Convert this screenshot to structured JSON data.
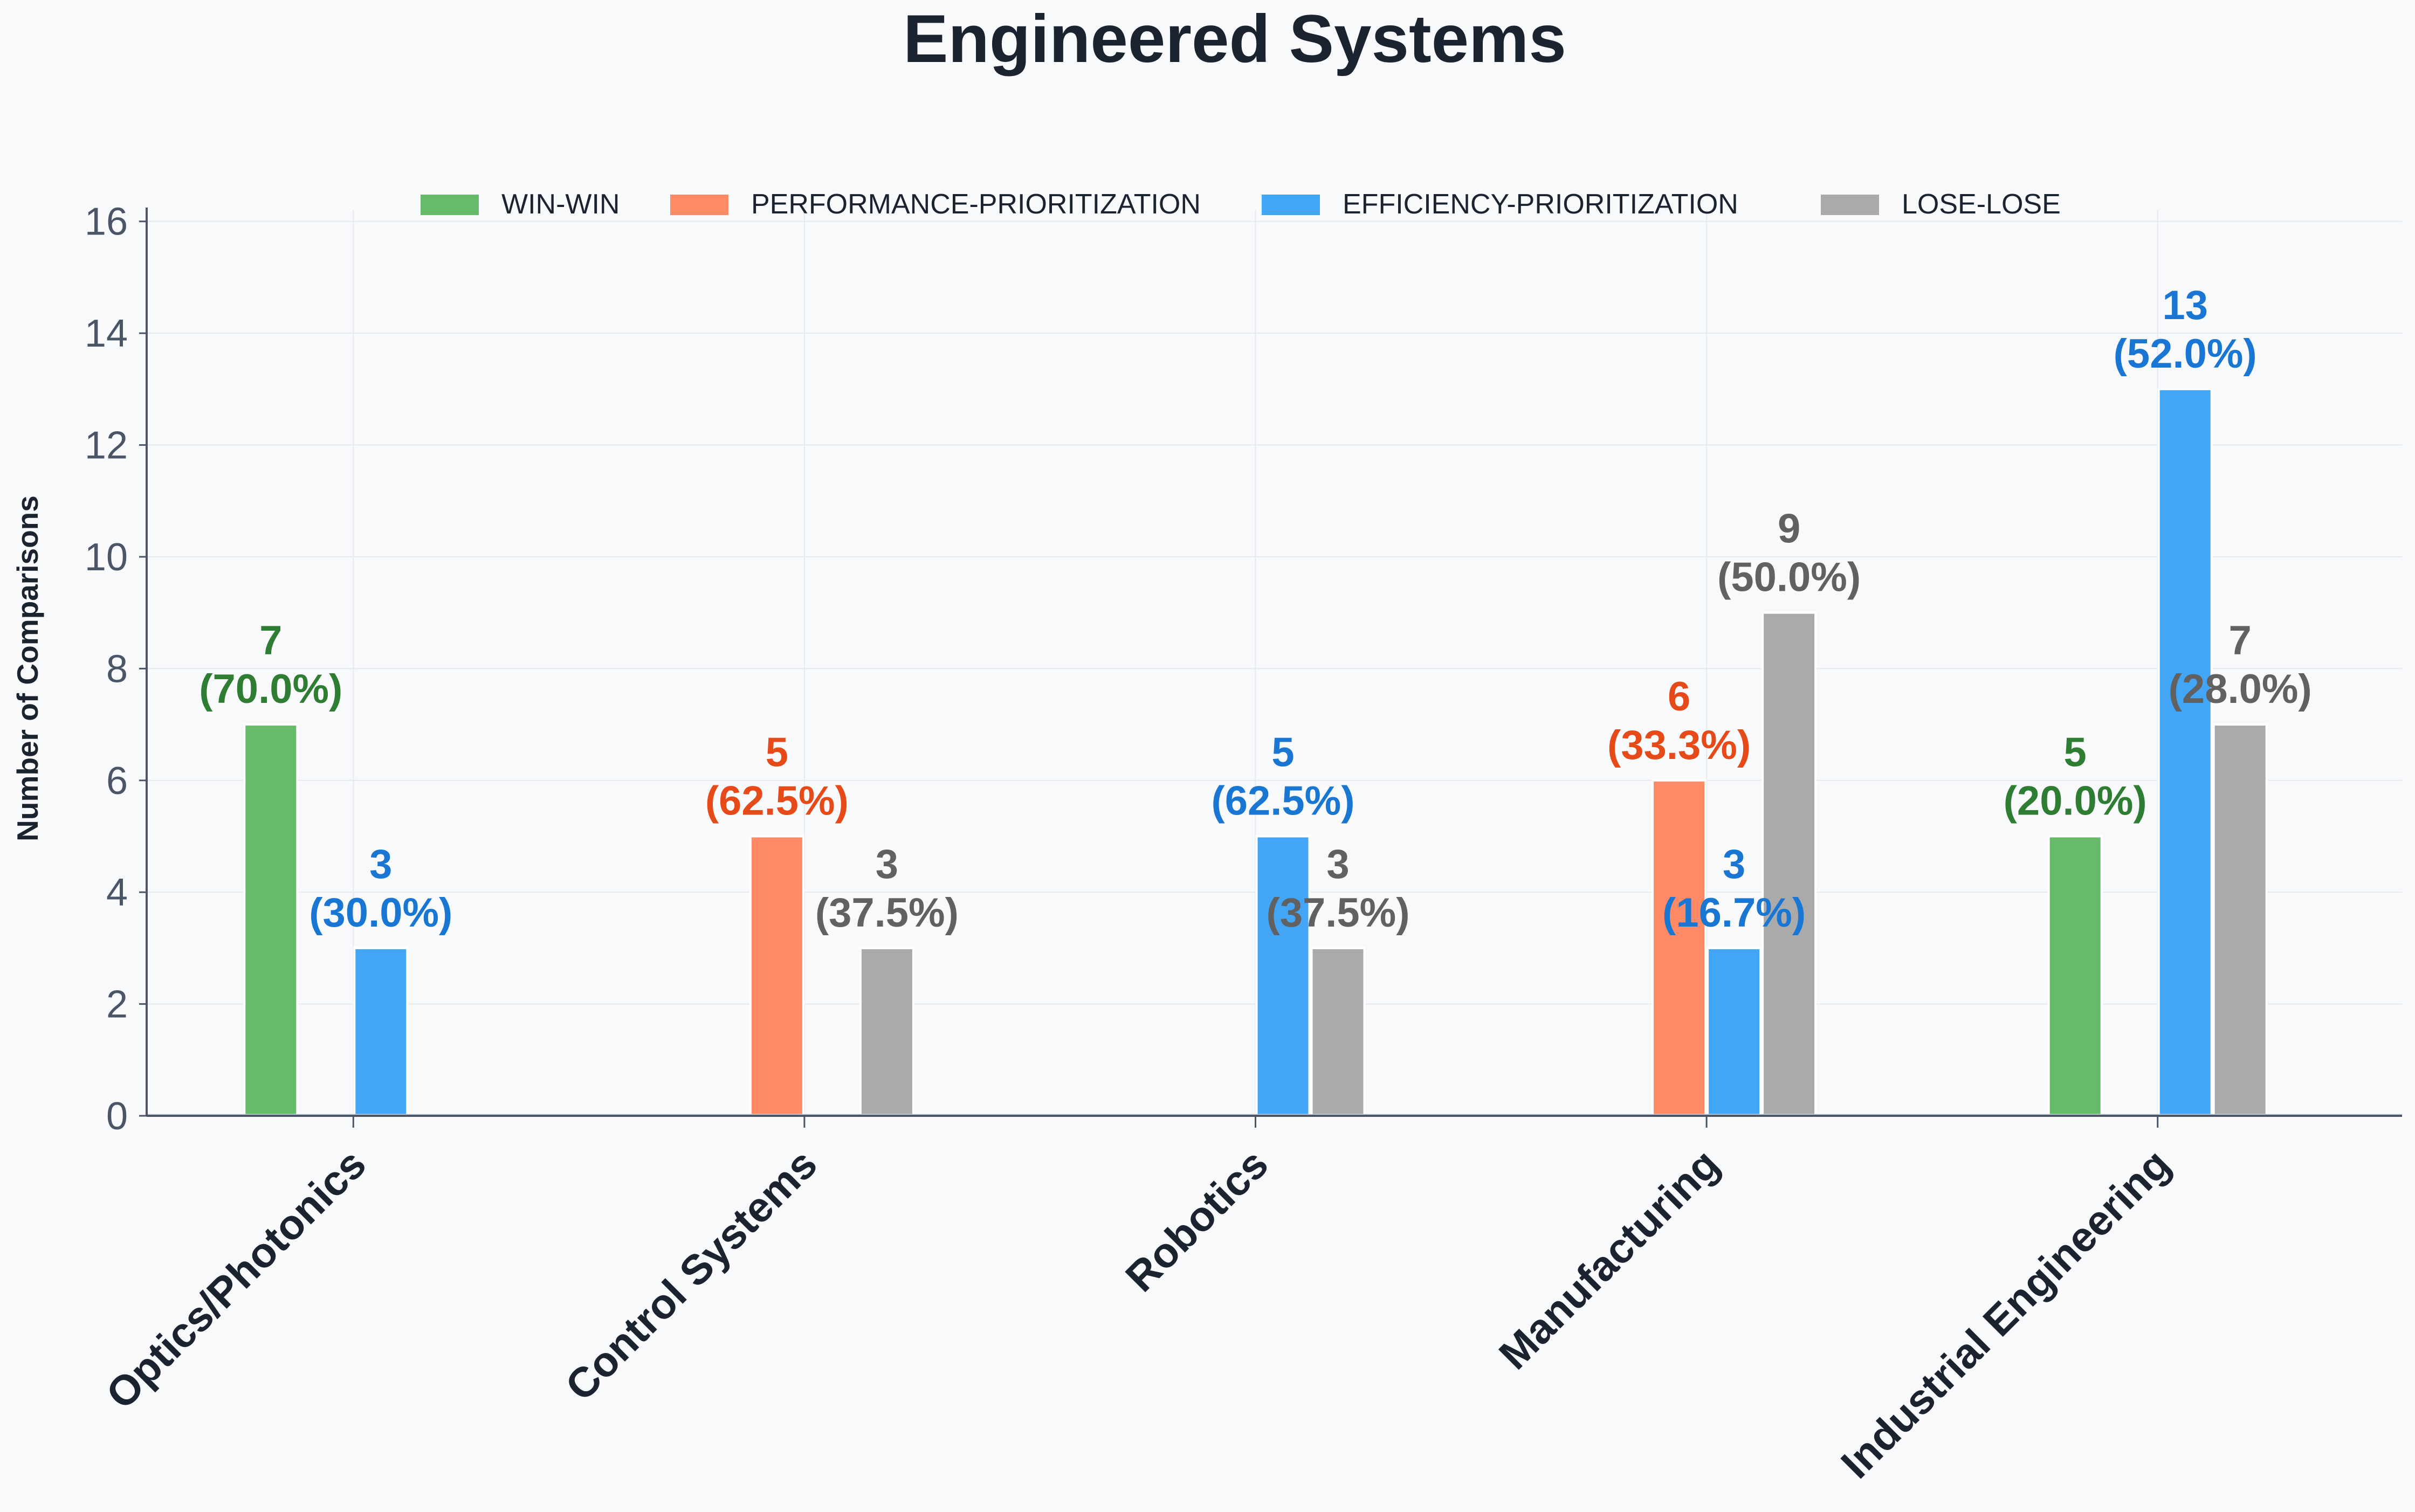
{
  "chart_data": {
    "type": "bar",
    "title": "Engineered Systems",
    "ylabel": "Number of Comparisons",
    "xlabel": "",
    "ylim": [
      0,
      16.2
    ],
    "yticks": [
      0,
      2,
      4,
      6,
      8,
      10,
      12,
      14,
      16
    ],
    "grid": true,
    "legend_position": "top",
    "categories": [
      "Optics/Photonics",
      "Control Systems",
      "Robotics",
      "Manufacturing",
      "Industrial Engineering"
    ],
    "series": [
      {
        "name": "WIN-WIN",
        "color": "#66bb6a",
        "label_color": "#2e7d32",
        "values": [
          7,
          0,
          0,
          0,
          5
        ],
        "labels": [
          "7\n(70.0%)",
          "",
          "",
          "",
          "5\n(20.0%)"
        ]
      },
      {
        "name": "PERFORMANCE-PRIORITIZATION",
        "color": "#ff8a65",
        "label_color": "#e64a19",
        "values": [
          0,
          5,
          0,
          6,
          0
        ],
        "labels": [
          "",
          "5\n(62.5%)",
          "",
          "6\n(33.3%)",
          ""
        ]
      },
      {
        "name": "EFFICIENCY-PRIORITIZATION",
        "color": "#42a5f5",
        "label_color": "#1976d2",
        "values": [
          3,
          0,
          5,
          3,
          13
        ],
        "labels": [
          "3\n(30.0%)",
          "",
          "5\n(62.5%)",
          "3\n(16.7%)",
          "13\n(52.0%)"
        ]
      },
      {
        "name": "LOSE-LOSE",
        "color": "#aaaaaa",
        "label_color": "#616161",
        "values": [
          0,
          3,
          3,
          9,
          7
        ],
        "labels": [
          "",
          "3\n(37.5%)",
          "3\n(37.5%)",
          "9\n(50.0%)",
          "7\n(28.0%)"
        ]
      }
    ]
  }
}
